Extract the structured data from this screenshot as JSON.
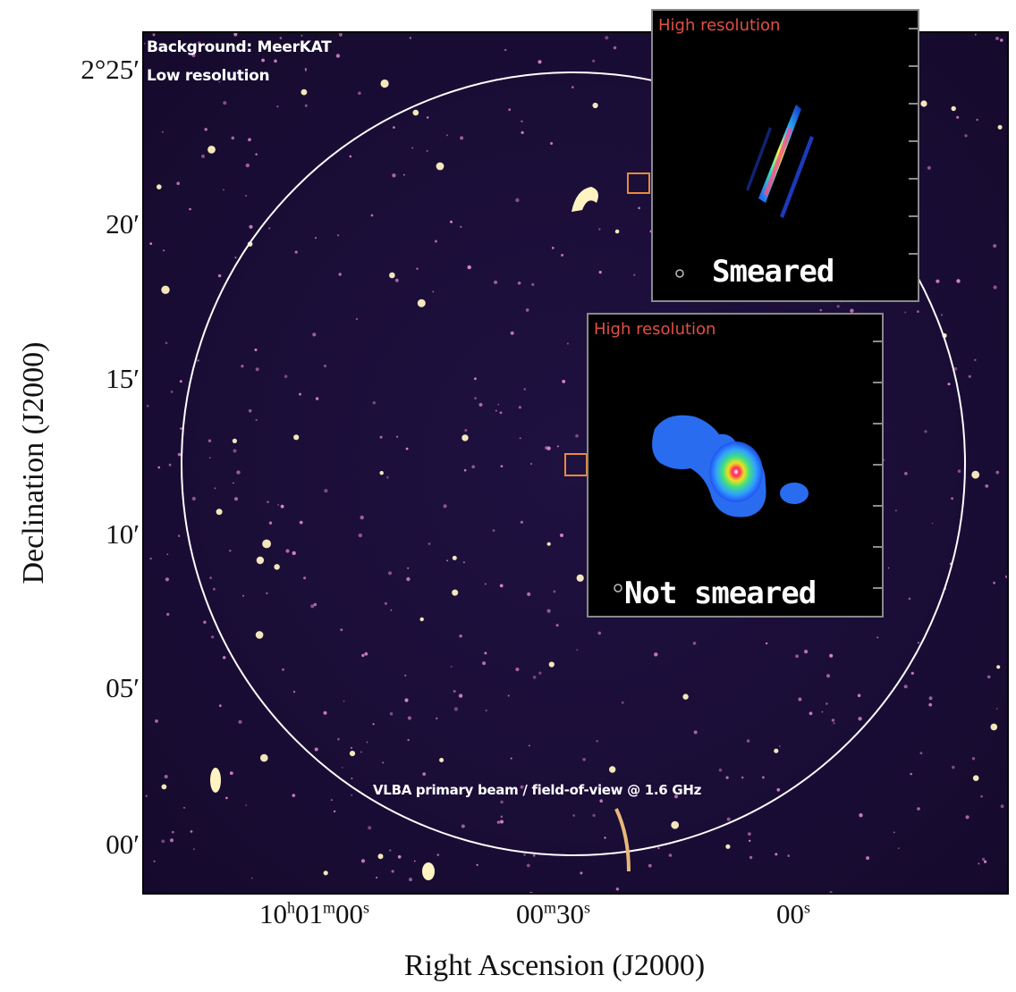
{
  "sky_image": {
    "background_label_line1": "Background: MeerKAT",
    "background_label_line2": "Low resolution",
    "beam_label": "VLBA primary beam / field-of-view @ 1.6 GHz"
  },
  "inset_top": {
    "title": "High resolution",
    "caption": "Smeared"
  },
  "inset_bottom": {
    "title": "High resolution",
    "caption": "Not smeared"
  },
  "y_axis": {
    "title": "Declination (J2000)",
    "ticks": [
      {
        "label": "2°25′"
      },
      {
        "label": "20′"
      },
      {
        "label": "15′"
      },
      {
        "label": "10′"
      },
      {
        "label": "05′"
      },
      {
        "label": "00′"
      }
    ]
  },
  "x_axis": {
    "title": "Right Ascension (J2000)",
    "ticks": [
      {
        "label": "10h01m00s"
      },
      {
        "label": "00m30s"
      },
      {
        "label": "00s"
      }
    ]
  },
  "colors": {
    "sky_background": "#1a0d36",
    "source_bright": "#fff3c2",
    "source_faint": "#e48bd8",
    "arrow": "#e05045",
    "marker": "#e88a3a",
    "beam_circle": "#ffffff"
  }
}
